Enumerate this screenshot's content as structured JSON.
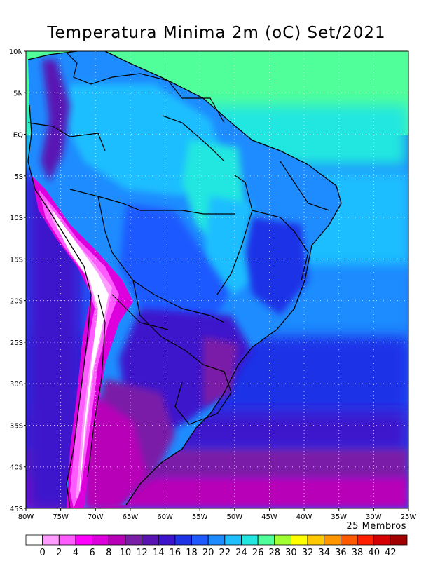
{
  "title": "Temperatura Minima 2m (oC) Set/2021",
  "members_note": "25 Membros",
  "lat_labels": [
    "10N",
    "5N",
    "EQ",
    "5S",
    "10S",
    "15S",
    "20S",
    "25S",
    "30S",
    "35S",
    "40S",
    "45S"
  ],
  "lon_labels": [
    "80W",
    "75W",
    "70W",
    "65W",
    "60W",
    "55W",
    "50W",
    "45W",
    "40W",
    "35W",
    "30W",
    "25W"
  ],
  "colorbar": {
    "tick_labels": [
      "0",
      "2",
      "4",
      "6",
      "8",
      "10",
      "12",
      "14",
      "16",
      "18",
      "20",
      "22",
      "24",
      "26",
      "28",
      "30",
      "32",
      "34",
      "36",
      "38",
      "40",
      "42"
    ],
    "colors": [
      "#ffffff",
      "#ff9cff",
      "#ff5cff",
      "#ff00ff",
      "#dd00dd",
      "#b800b8",
      "#7a1ea8",
      "#5a14b4",
      "#3c14cc",
      "#1e32e6",
      "#1e5aff",
      "#1e8cff",
      "#1ebeff",
      "#24e6e0",
      "#50ff9a",
      "#a0ff32",
      "#ffff00",
      "#ffc800",
      "#ff9600",
      "#ff5a00",
      "#ff1e00",
      "#d70000",
      "#a00000"
    ]
  }
}
